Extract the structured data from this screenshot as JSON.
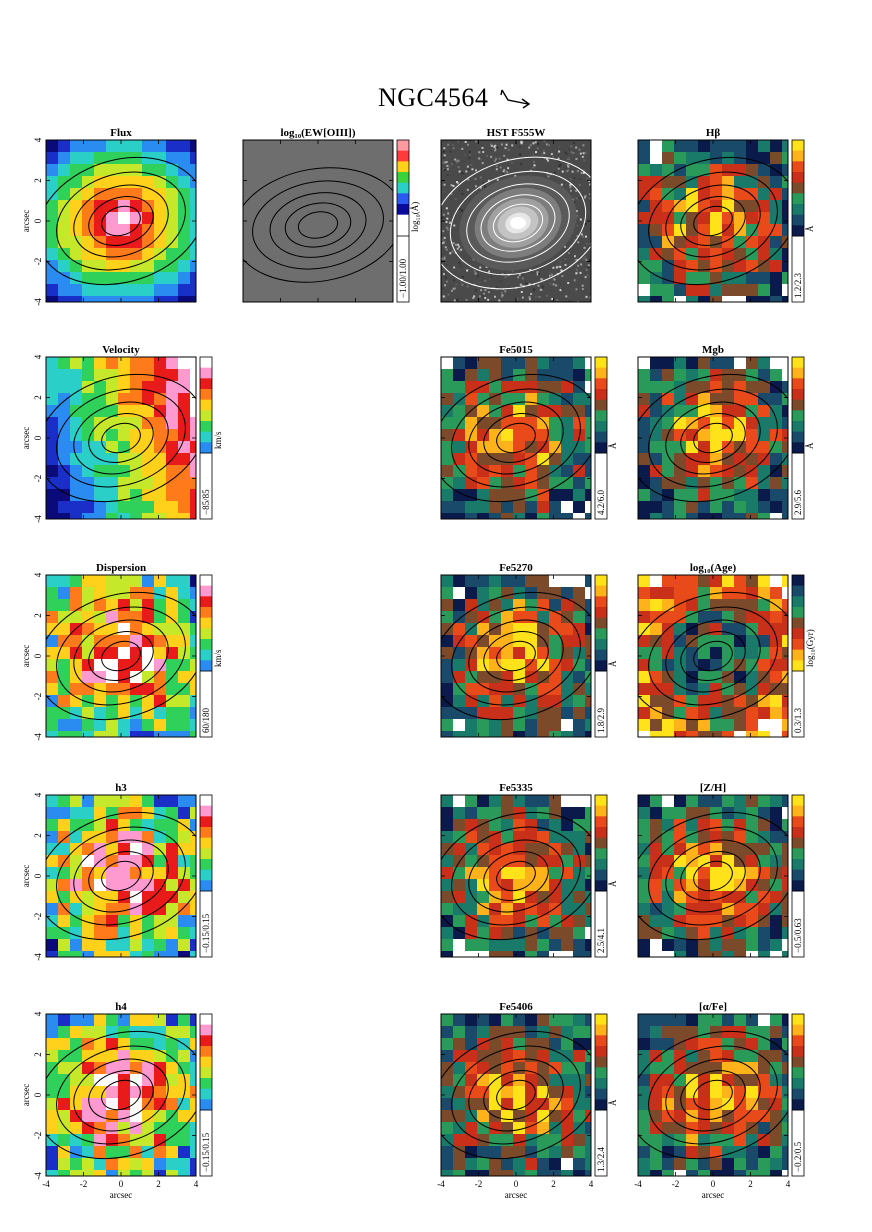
{
  "galaxy": "NGC4564",
  "arrow_icon": "north-east-orientation-arrow-icon",
  "axis_label": "arcsec",
  "ticks": [
    "-4",
    "-2",
    "0",
    "2",
    "4"
  ],
  "colors": {
    "no_data_gray": "#6e6e6e",
    "background": "#ffffff",
    "contour": "#000000"
  },
  "chart_data": [
    {
      "type": "heatmap",
      "title": "Flux",
      "colormap": "rainbow",
      "colorbar": false,
      "contours": true,
      "xlim": [
        -4,
        4
      ],
      "ylim": [
        -4,
        4
      ],
      "show_y_axis": true,
      "show_x_axis": false
    },
    {
      "type": "heatmap",
      "title": "log₁₀(EW[OIII])",
      "colormap": "gray",
      "colorbar": true,
      "colorbar_range": "−1.00/1.00",
      "colorbar_label": "log₁₀(Å)",
      "contours": true,
      "xlim": [
        -4,
        4
      ],
      "ylim": [
        -4,
        4
      ],
      "show_y_axis": false,
      "show_x_axis": false
    },
    {
      "type": "heatmap",
      "title": "HST F555W",
      "colormap": "gray-image",
      "colorbar": false,
      "contours": true,
      "xlim": [
        -4,
        4
      ],
      "ylim": [
        -4,
        4
      ],
      "show_y_axis": false,
      "show_x_axis": false
    },
    {
      "type": "heatmap",
      "title": "Hβ",
      "colormap": "index",
      "colorbar": true,
      "colorbar_range": "1.2/2.3",
      "colorbar_label": "Å",
      "contours": true,
      "xlim": [
        -4,
        4
      ],
      "ylim": [
        -4,
        4
      ],
      "show_y_axis": false,
      "show_x_axis": false
    },
    {
      "type": "heatmap",
      "title": "Velocity",
      "colormap": "rainbow",
      "colorbar": true,
      "colorbar_range": "−85/85",
      "colorbar_label": "km/s",
      "contours": true,
      "xlim": [
        -4,
        4
      ],
      "ylim": [
        -4,
        4
      ],
      "show_y_axis": true,
      "show_x_axis": false
    },
    {
      "type": "heatmap",
      "title": "Fe5015",
      "colormap": "index",
      "colorbar": true,
      "colorbar_range": "4.2/6.0",
      "colorbar_label": "Å",
      "contours": true,
      "xlim": [
        -4,
        4
      ],
      "ylim": [
        -4,
        4
      ],
      "show_y_axis": false,
      "show_x_axis": false
    },
    {
      "type": "heatmap",
      "title": "Mgb",
      "colormap": "index",
      "colorbar": true,
      "colorbar_range": "2.9/5.6",
      "colorbar_label": "Å",
      "contours": true,
      "xlim": [
        -4,
        4
      ],
      "ylim": [
        -4,
        4
      ],
      "show_y_axis": false,
      "show_x_axis": false
    },
    {
      "type": "heatmap",
      "title": "Dispersion",
      "colormap": "rainbow",
      "colorbar": true,
      "colorbar_range": "60/180",
      "colorbar_label": "km/s",
      "contours": true,
      "xlim": [
        -4,
        4
      ],
      "ylim": [
        -4,
        4
      ],
      "show_y_axis": true,
      "show_x_axis": false
    },
    {
      "type": "heatmap",
      "title": "Fe5270",
      "colormap": "index",
      "colorbar": true,
      "colorbar_range": "1.8/2.9",
      "colorbar_label": "Å",
      "contours": true,
      "xlim": [
        -4,
        4
      ],
      "ylim": [
        -4,
        4
      ],
      "show_y_axis": false,
      "show_x_axis": false
    },
    {
      "type": "heatmap",
      "title": "log₁₀(Age)",
      "colormap": "index-reversed",
      "colorbar": true,
      "colorbar_range": "0.3/1.3",
      "colorbar_label": "log₁₀(Gyr)",
      "contours": true,
      "xlim": [
        -4,
        4
      ],
      "ylim": [
        -4,
        4
      ],
      "show_y_axis": false,
      "show_x_axis": false
    },
    {
      "type": "heatmap",
      "title": "h3",
      "colormap": "rainbow",
      "colorbar": true,
      "colorbar_range": "−0.15/0.15",
      "colorbar_label": "",
      "contours": true,
      "xlim": [
        -4,
        4
      ],
      "ylim": [
        -4,
        4
      ],
      "show_y_axis": true,
      "show_x_axis": false
    },
    {
      "type": "heatmap",
      "title": "Fe5335",
      "colormap": "index",
      "colorbar": true,
      "colorbar_range": "2.5/4.1",
      "colorbar_label": "Å",
      "contours": true,
      "xlim": [
        -4,
        4
      ],
      "ylim": [
        -4,
        4
      ],
      "show_y_axis": false,
      "show_x_axis": false
    },
    {
      "type": "heatmap",
      "title": "[Z/H]",
      "colormap": "index",
      "colorbar": true,
      "colorbar_range": "−0.5/0.63",
      "colorbar_label": "",
      "contours": true,
      "xlim": [
        -4,
        4
      ],
      "ylim": [
        -4,
        4
      ],
      "show_y_axis": false,
      "show_x_axis": false
    },
    {
      "type": "heatmap",
      "title": "h4",
      "colormap": "rainbow",
      "colorbar": true,
      "colorbar_range": "−0.15/0.15",
      "colorbar_label": "",
      "contours": true,
      "xlim": [
        -4,
        4
      ],
      "ylim": [
        -4,
        4
      ],
      "show_y_axis": true,
      "show_x_axis": true
    },
    {
      "type": "heatmap",
      "title": "Fe5406",
      "colormap": "index",
      "colorbar": true,
      "colorbar_range": "1.3/2.4",
      "colorbar_label": "Å",
      "contours": true,
      "xlim": [
        -4,
        4
      ],
      "ylim": [
        -4,
        4
      ],
      "show_y_axis": false,
      "show_x_axis": true
    },
    {
      "type": "heatmap",
      "title": "[α/Fe]",
      "colormap": "index",
      "colorbar": true,
      "colorbar_range": "−0.2/0.5",
      "colorbar_label": "",
      "contours": true,
      "xlim": [
        -4,
        4
      ],
      "ylim": [
        -4,
        4
      ],
      "show_y_axis": false,
      "show_x_axis": true
    }
  ]
}
